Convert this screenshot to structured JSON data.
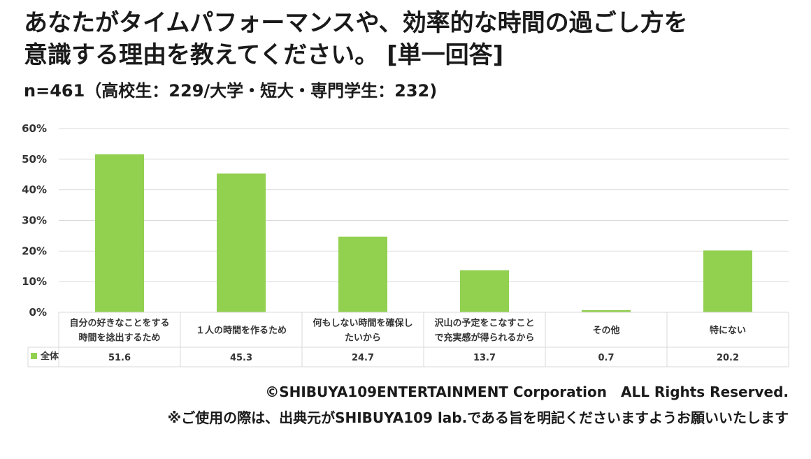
{
  "title": "あなたがタイムパフォーマンスや、効率的な時間の過ごし方を\n意識する理由を教えてください。 [単一回答]",
  "subtitle": "n=461（高校生：229/大学・短大・専門学生：232)",
  "chart_data": {
    "type": "bar",
    "categories": [
      [
        "自分の好きなことをする",
        "時間を捻出するため"
      ],
      [
        "１人の時間を作るため"
      ],
      [
        "何もしない時間を確保し",
        "たいから"
      ],
      [
        "沢山の予定をこなすこと",
        "で充実感が得られるから"
      ],
      [
        "その他"
      ],
      [
        "特にない"
      ]
    ],
    "series": [
      {
        "name": "全体",
        "values": [
          51.6,
          45.3,
          24.7,
          13.7,
          0.7,
          20.2
        ],
        "labels": [
          "51.6",
          "45.3",
          "24.7",
          "13.7",
          "0.7",
          "20.2"
        ]
      }
    ],
    "y_ticks": [
      "0%",
      "10%",
      "20%",
      "30%",
      "40%",
      "50%",
      "60%"
    ],
    "ylim": [
      0,
      60
    ],
    "grid": true,
    "legend": "data-table",
    "color": "#92d050",
    "gridColor": "#d9d9d9"
  },
  "footer": {
    "copyright": "©SHIBUYA109ENTERTAINMENT Corporation　ALL Rights Reserved.",
    "notice": "※ご使用の際は、出典元がSHIBUYA109 lab.である旨を明記くださいますようお願いいたします"
  }
}
